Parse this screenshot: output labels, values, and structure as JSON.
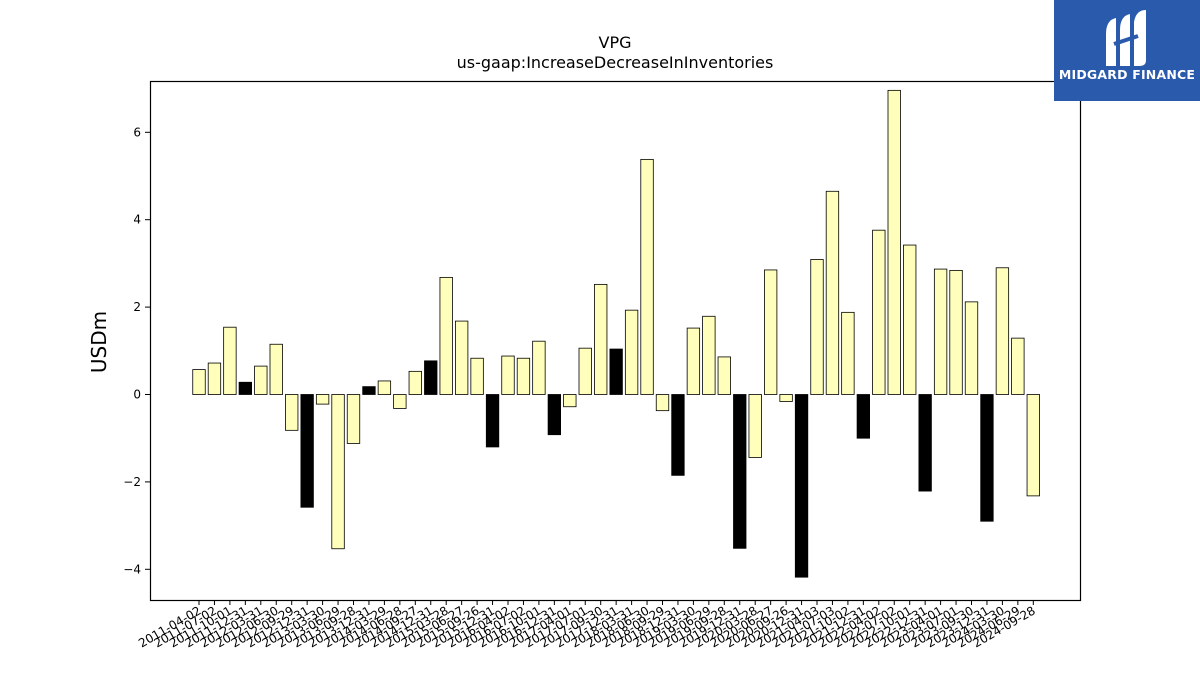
{
  "logo": {
    "brand": "MIDGARD FINANCE",
    "icon": "midgard-m-logo-icon",
    "background": "#2a5aab"
  },
  "chart_data": {
    "type": "bar",
    "title": "VPG",
    "subtitle": "us-gaap:IncreaseDecreaseInInventories",
    "ylabel": "USDm",
    "xlabel": "",
    "ylim": [
      -4.8,
      7.2
    ],
    "yticks": [
      -4,
      -2,
      0,
      2,
      4,
      6
    ],
    "ytick_labels": [
      "−4",
      "−2",
      "0",
      "2",
      "4",
      "6"
    ],
    "grid": false,
    "legend": "none",
    "colors": {
      "bar_fill": "#ffffbb",
      "highlight_fill": "#000000",
      "edge": "#000000"
    },
    "categories": [
      "2011-04-02",
      "2011-07-02",
      "2011-10-01",
      "2011-12-31",
      "2012-03-31",
      "2012-06-30",
      "2012-09-29",
      "2012-12-31",
      "2013-03-30",
      "2013-06-29",
      "2013-09-28",
      "2013-12-31",
      "2014-03-29",
      "2014-06-28",
      "2014-09-27",
      "2014-12-31",
      "2015-03-28",
      "2015-06-27",
      "2015-09-26",
      "2015-12-31",
      "2016-04-02",
      "2016-07-02",
      "2016-10-01",
      "2016-12-31",
      "2017-04-01",
      "2017-07-01",
      "2017-09-30",
      "2017-12-31",
      "2018-03-31",
      "2018-06-30",
      "2018-09-29",
      "2018-12-31",
      "2019-03-30",
      "2019-06-29",
      "2019-09-28",
      "2019-12-31",
      "2020-03-28",
      "2020-06-27",
      "2020-09-26",
      "2020-12-31",
      "2021-04-03",
      "2021-07-03",
      "2021-10-02",
      "2021-12-31",
      "2022-04-02",
      "2022-07-02",
      "2022-10-01",
      "2022-12-31",
      "2023-04-01",
      "2023-07-01",
      "2023-09-30",
      "2023-12-31",
      "2024-03-30",
      "2024-06-29",
      "2024-09-28"
    ],
    "values": [
      0.57,
      0.72,
      1.54,
      0.28,
      0.65,
      1.15,
      -0.82,
      -2.58,
      -0.22,
      -3.53,
      -1.12,
      0.18,
      0.31,
      -0.32,
      0.53,
      0.77,
      2.68,
      1.68,
      0.83,
      -1.2,
      0.88,
      0.83,
      1.22,
      -0.92,
      -0.28,
      1.06,
      2.52,
      1.04,
      1.93,
      5.38,
      -0.37,
      -1.85,
      1.52,
      1.79,
      0.86,
      -3.52,
      -1.44,
      2.85,
      -0.16,
      -4.18,
      3.09,
      4.65,
      1.88,
      -1.0,
      3.76,
      6.96,
      3.42,
      -2.21,
      2.87,
      2.84,
      2.12,
      -2.9,
      2.9,
      1.29,
      -2.32
    ],
    "highlight": [
      false,
      false,
      false,
      true,
      false,
      false,
      false,
      true,
      false,
      false,
      false,
      true,
      false,
      false,
      false,
      true,
      false,
      false,
      false,
      true,
      false,
      false,
      false,
      true,
      false,
      false,
      false,
      true,
      false,
      false,
      false,
      true,
      false,
      false,
      false,
      true,
      false,
      false,
      false,
      true,
      false,
      false,
      false,
      true,
      false,
      false,
      false,
      true,
      false,
      false,
      false,
      true,
      false,
      false,
      false
    ]
  }
}
